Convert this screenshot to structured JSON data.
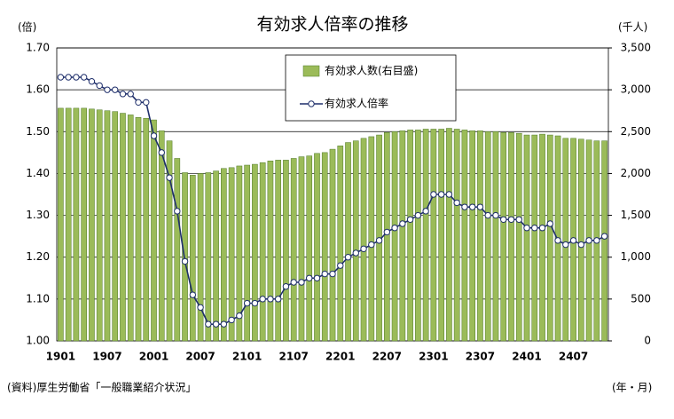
{
  "chart_data": {
    "type": "bar+line",
    "title": "有効求人倍率の推移",
    "y_label": "(倍)",
    "y2_label": "(千人)",
    "x_label": "(年・月)",
    "source": "(資料)厚生労働省「一般職業紹介状況」",
    "categories": [
      "1901",
      null,
      null,
      null,
      null,
      null,
      "1907",
      null,
      null,
      null,
      null,
      null,
      "2001",
      null,
      null,
      null,
      null,
      null,
      "2007",
      null,
      null,
      null,
      null,
      null,
      "2101",
      null,
      null,
      null,
      null,
      null,
      "2107",
      null,
      null,
      null,
      null,
      null,
      "2201",
      null,
      null,
      null,
      null,
      null,
      "2207",
      null,
      null,
      null,
      null,
      null,
      "2301",
      null,
      null,
      null,
      null,
      null,
      "2307",
      null,
      null,
      null,
      null,
      null,
      "2401",
      null,
      null,
      null,
      null,
      null,
      "2407",
      null,
      null,
      null,
      null
    ],
    "series": [
      {
        "name": "有効求人数(右目盛)",
        "type": "bar",
        "axis": "y2",
        "color": "#9bbb59",
        "stroke": "#4f7a28",
        "values": [
          2780,
          2780,
          2780,
          2780,
          2770,
          2760,
          2750,
          2740,
          2720,
          2700,
          2670,
          2660,
          2640,
          2510,
          2390,
          2180,
          2010,
          1980,
          2000,
          2010,
          2030,
          2060,
          2070,
          2090,
          2100,
          2110,
          2130,
          2150,
          2160,
          2160,
          2180,
          2200,
          2210,
          2240,
          2250,
          2290,
          2330,
          2370,
          2390,
          2420,
          2440,
          2460,
          2490,
          2500,
          2510,
          2520,
          2520,
          2530,
          2530,
          2530,
          2540,
          2530,
          2520,
          2510,
          2510,
          2500,
          2500,
          2490,
          2490,
          2480,
          2460,
          2460,
          2470,
          2460,
          2450,
          2420,
          2420,
          2410,
          2400,
          2390,
          2390
        ]
      },
      {
        "name": "有効求人倍率",
        "type": "line",
        "axis": "y",
        "color": "#1f2f6b",
        "values": [
          1.63,
          1.63,
          1.63,
          1.63,
          1.62,
          1.61,
          1.6,
          1.6,
          1.59,
          1.59,
          1.57,
          1.57,
          1.49,
          1.45,
          1.39,
          1.31,
          1.19,
          1.11,
          1.08,
          1.04,
          1.04,
          1.04,
          1.05,
          1.06,
          1.09,
          1.09,
          1.1,
          1.1,
          1.1,
          1.13,
          1.14,
          1.14,
          1.15,
          1.15,
          1.16,
          1.16,
          1.18,
          1.2,
          1.21,
          1.22,
          1.23,
          1.24,
          1.26,
          1.27,
          1.28,
          1.29,
          1.3,
          1.31,
          1.35,
          1.35,
          1.35,
          1.33,
          1.32,
          1.32,
          1.32,
          1.3,
          1.3,
          1.29,
          1.29,
          1.29,
          1.27,
          1.27,
          1.27,
          1.28,
          1.24,
          1.23,
          1.24,
          1.23,
          1.24,
          1.24,
          1.25
        ]
      }
    ],
    "ylim": [
      1.0,
      1.7
    ],
    "yticks": [
      {
        "value": 1.0,
        "label": "1.00"
      },
      {
        "value": 1.1,
        "label": "1.10"
      },
      {
        "value": 1.2,
        "label": "1.20"
      },
      {
        "value": 1.3,
        "label": "1.30"
      },
      {
        "value": 1.4,
        "label": "1.40"
      },
      {
        "value": 1.5,
        "label": "1.50"
      },
      {
        "value": 1.6,
        "label": "1.60"
      },
      {
        "value": 1.7,
        "label": "1.70"
      }
    ],
    "y2lim": [
      0,
      3500
    ],
    "y2ticks": [
      0,
      500,
      {
        "value": 1000,
        "label": "1,000"
      },
      {
        "value": 1500,
        "label": "1,500"
      },
      {
        "value": 2000,
        "label": "2,000"
      },
      {
        "value": 2500,
        "label": "2,500"
      },
      {
        "value": 3000,
        "label": "3,000"
      },
      {
        "value": 3500,
        "label": "3,500"
      }
    ],
    "grid": true
  }
}
